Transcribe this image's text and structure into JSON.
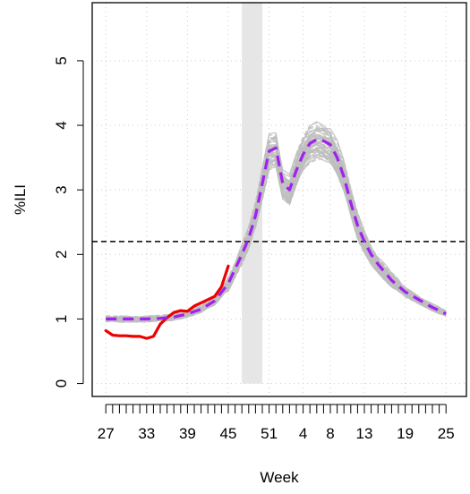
{
  "chart_data": {
    "type": "line",
    "title": "",
    "xlabel": "Week",
    "ylabel": "%ILI",
    "x_tick_labels": [
      "27",
      "33",
      "39",
      "45",
      "51",
      "4",
      "8",
      "13",
      "19",
      "25"
    ],
    "x_tick_positions": [
      0,
      6,
      12,
      18,
      24,
      29,
      33,
      38,
      44,
      50
    ],
    "y_ticks": [
      0,
      1,
      2,
      3,
      4,
      5
    ],
    "xlim": [
      -2,
      53
    ],
    "ylim": [
      -0.2,
      5.9
    ],
    "grid": true,
    "threshold": 2.2,
    "shaded_band": {
      "x_start": 20,
      "x_end": 23,
      "y_top": 5.9
    },
    "week_index_note": "x positions are consecutive weeks starting at week 27",
    "colors": {
      "observed": "#ee0000",
      "forecast_mean": "#a020f0",
      "forecast_samples": "#bebebe",
      "band": "#e6e6e6",
      "threshold": "#000000",
      "grid": "#cccccc"
    },
    "series": [
      {
        "name": "",
        "role": "observed",
        "x": [
          0,
          1,
          2,
          3,
          4,
          5,
          6,
          7,
          8,
          9,
          10,
          11,
          12,
          13,
          14,
          15,
          16,
          17,
          18
        ],
        "y": [
          0.82,
          0.75,
          0.74,
          0.74,
          0.73,
          0.73,
          0.7,
          0.73,
          0.92,
          1.02,
          1.1,
          1.13,
          1.12,
          1.2,
          1.25,
          1.3,
          1.35,
          1.5,
          1.82
        ]
      },
      {
        "name": "",
        "role": "forecast_mean",
        "x": [
          0,
          2,
          4,
          6,
          8,
          10,
          12,
          14,
          16,
          18,
          20,
          21,
          22,
          23,
          24,
          25,
          26,
          27,
          28,
          29,
          30,
          31,
          32,
          33,
          34,
          35,
          36,
          37,
          38,
          39,
          40,
          42,
          44,
          46,
          48,
          50
        ],
        "y": [
          1.0,
          1.0,
          1.0,
          1.0,
          1.01,
          1.03,
          1.08,
          1.15,
          1.28,
          1.55,
          2.0,
          2.25,
          2.6,
          3.1,
          3.6,
          3.65,
          3.1,
          3.0,
          3.3,
          3.55,
          3.72,
          3.78,
          3.76,
          3.7,
          3.5,
          3.2,
          2.8,
          2.45,
          2.2,
          2.0,
          1.85,
          1.6,
          1.42,
          1.3,
          1.18,
          1.08
        ]
      }
    ]
  }
}
